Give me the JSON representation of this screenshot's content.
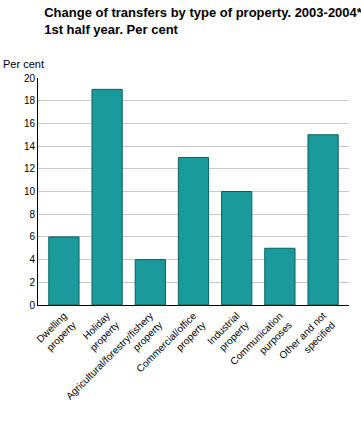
{
  "chart_data": {
    "type": "bar",
    "title": "Change of transfers by type of property. 2003-2004*.\n1st half year. Per cent",
    "y_label": "Per cent",
    "categories": [
      "Dwelling property",
      "Holiday property",
      "Agricultural/forestry/fishery property",
      "Commercial/office property",
      "Industrial property",
      "Communication purposes",
      "Other and not specified"
    ],
    "values": [
      6,
      19,
      4,
      13,
      10,
      5,
      15
    ],
    "color": "#1a9a9a",
    "ylim": [
      0,
      20
    ],
    "yticks": [
      0,
      2,
      4,
      6,
      8,
      10,
      12,
      14,
      16,
      18,
      20
    ],
    "grid": true
  }
}
